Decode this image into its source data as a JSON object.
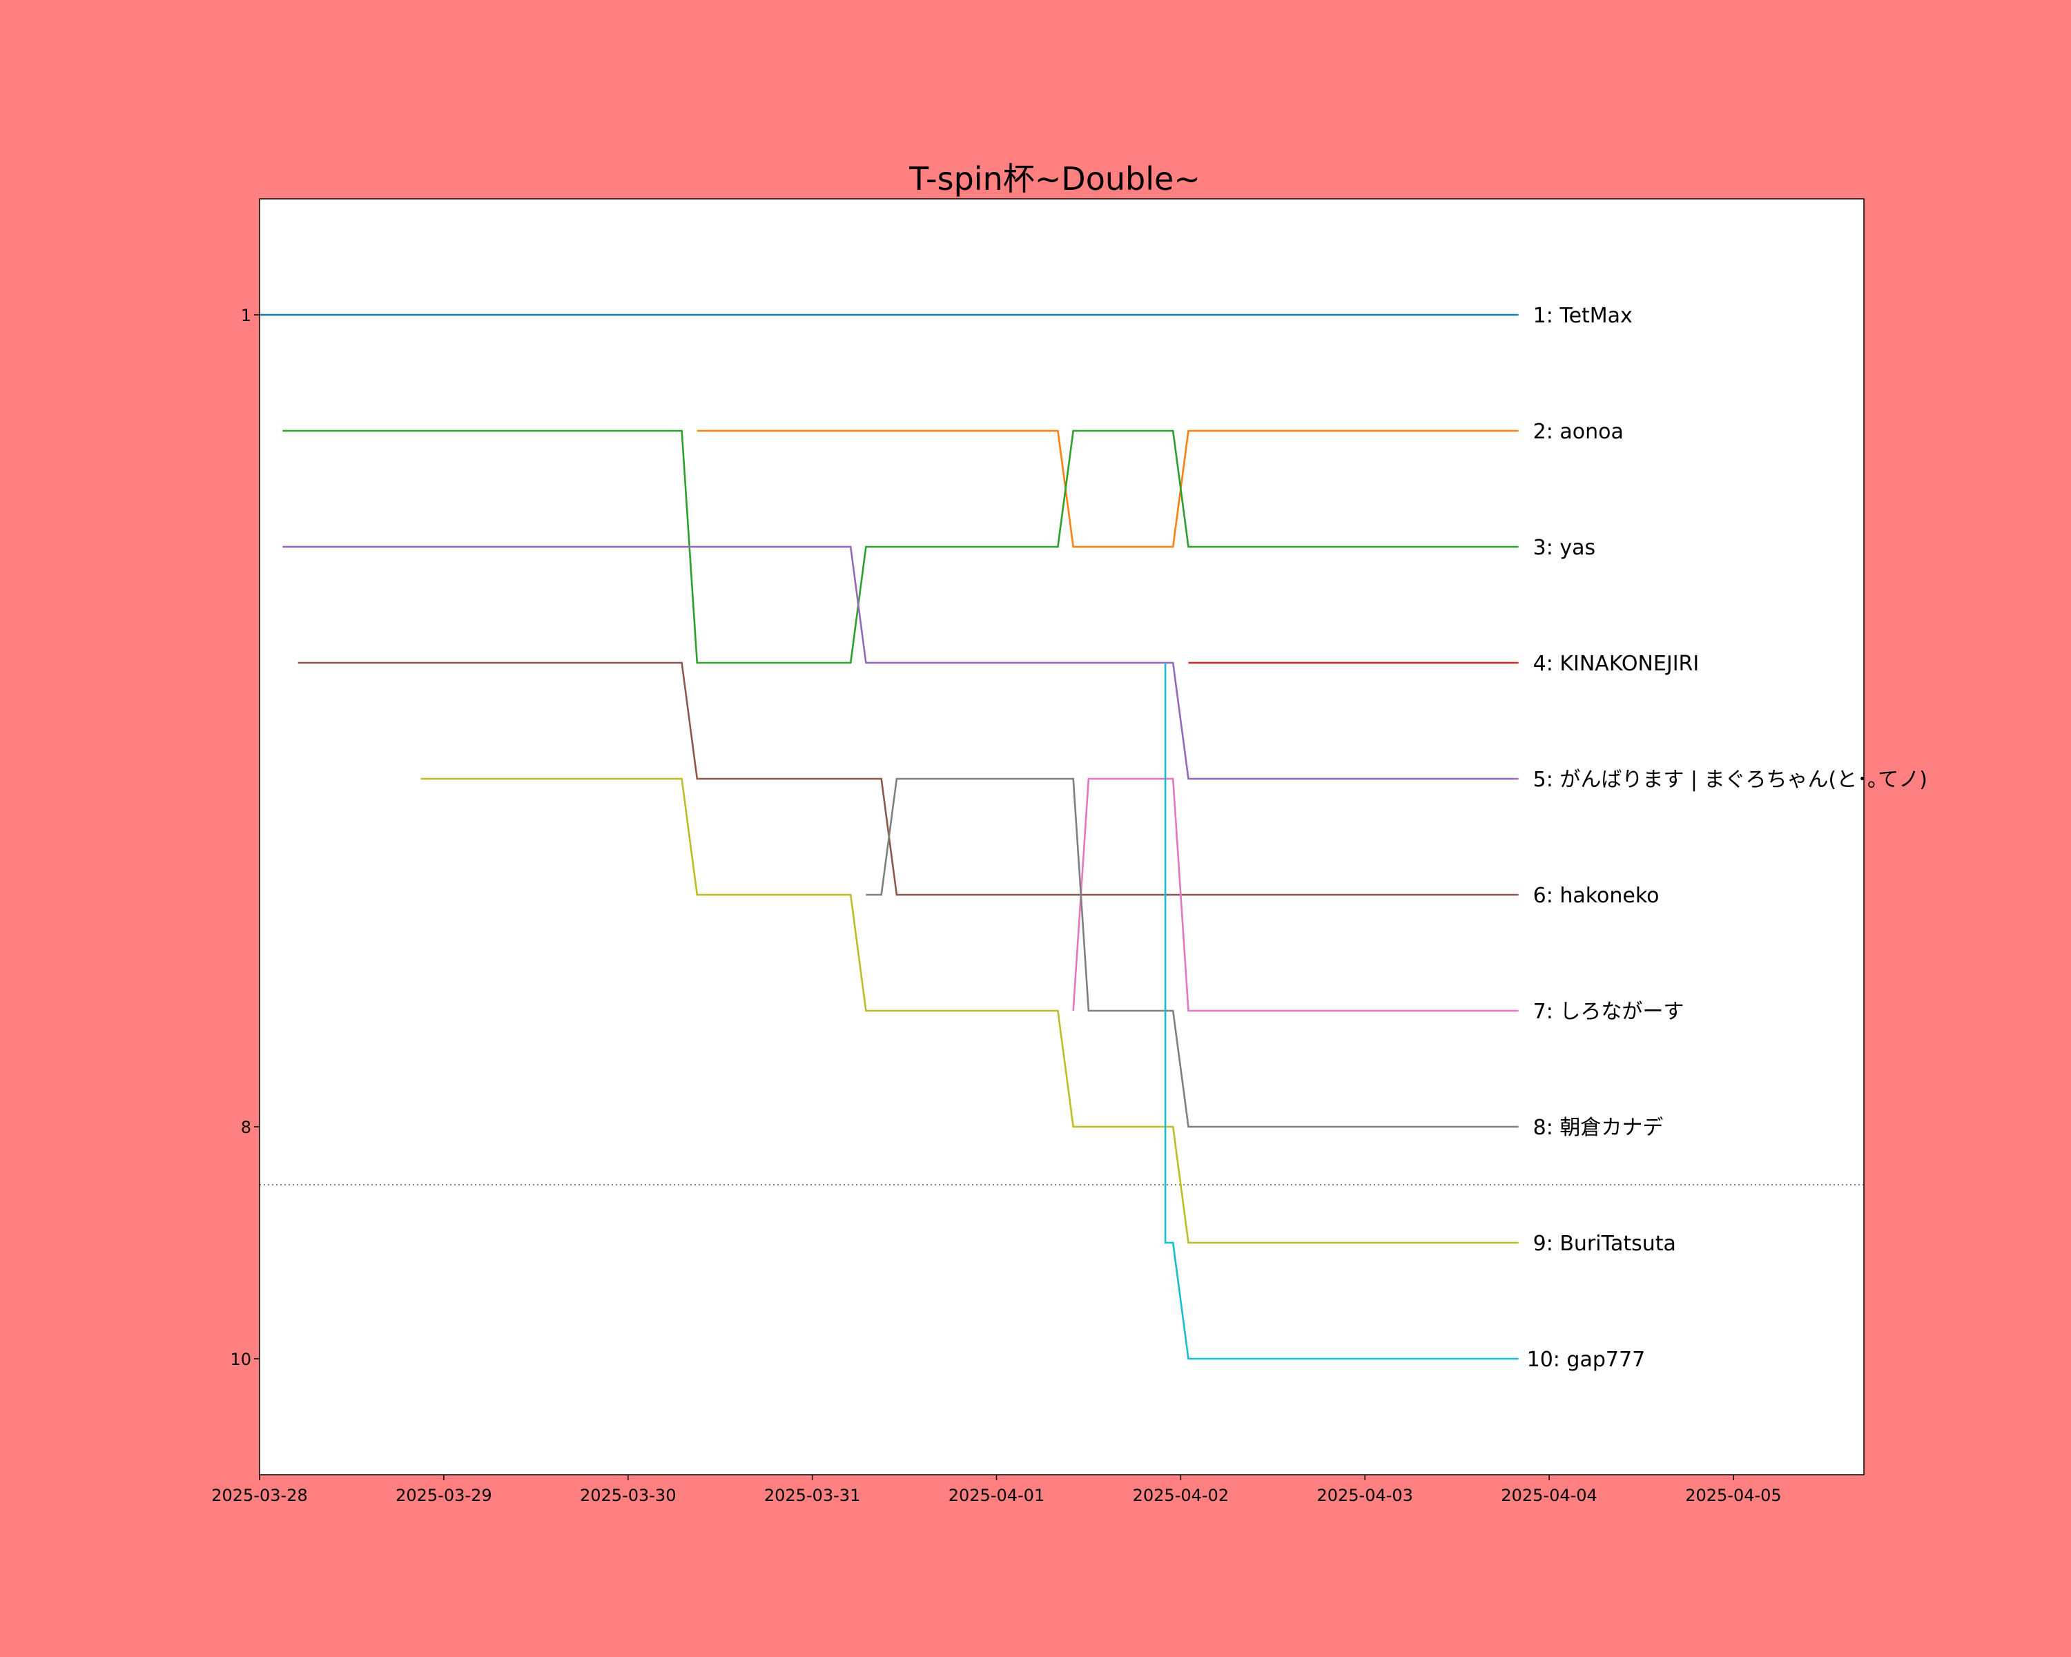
{
  "chart_data": {
    "type": "line",
    "title": "T-spin杯~Double~",
    "xlabel": "",
    "ylabel": "",
    "x_axis": {
      "type": "date",
      "ticks": [
        "2025-03-28",
        "2025-03-29",
        "2025-03-30",
        "2025-03-31",
        "2025-04-01",
        "2025-04-02",
        "2025-04-03",
        "2025-04-04",
        "2025-04-05"
      ],
      "range": [
        "2025-03-28",
        "2025-04-05 17:00"
      ]
    },
    "y_axis": {
      "inverted": true,
      "ticks": [
        "1",
        "8",
        "10"
      ],
      "range": [
        0,
        11
      ],
      "threshold_line": 8.5,
      "threshold_style": "dotted"
    },
    "grid": false,
    "legend": "none",
    "background": "#ff8080",
    "plot_background": "#ffffff",
    "series": [
      {
        "end_label": "1: TetMax",
        "color": "#1f77b4",
        "points": [
          [
            "2025-03-28 00:00",
            1
          ],
          [
            "2025-04-03 20:00",
            1
          ]
        ]
      },
      {
        "end_label": "2: aonoa",
        "color": "#ff7f0e",
        "points": [
          [
            "2025-03-30 09:00",
            2
          ],
          [
            "2025-04-01 08:00",
            2
          ],
          [
            "2025-04-01 10:00",
            3
          ],
          [
            "2025-04-01 23:00",
            3
          ],
          [
            "2025-04-02 01:00",
            2
          ],
          [
            "2025-04-03 20:00",
            2
          ]
        ]
      },
      {
        "end_label": "3: yas",
        "color": "#2ca02c",
        "points": [
          [
            "2025-03-28 03:00",
            2
          ],
          [
            "2025-03-30 07:00",
            2
          ],
          [
            "2025-03-30 09:00",
            4
          ],
          [
            "2025-03-31 05:00",
            4
          ],
          [
            "2025-03-31 07:00",
            3
          ],
          [
            "2025-04-01 08:00",
            3
          ],
          [
            "2025-04-01 10:00",
            2
          ],
          [
            "2025-04-01 23:00",
            2
          ],
          [
            "2025-04-02 01:00",
            3
          ],
          [
            "2025-04-03 20:00",
            3
          ]
        ]
      },
      {
        "end_label": "4: KINAKONEJIRI",
        "color": "#d62728",
        "points": [
          [
            "2025-04-02 01:00",
            4
          ],
          [
            "2025-04-03 20:00",
            4
          ]
        ]
      },
      {
        "end_label": "5: がんばります | まぐろちゃん(と･｡てノ)",
        "color": "#9467bd",
        "points": [
          [
            "2025-03-28 03:00",
            3
          ],
          [
            "2025-03-31 05:00",
            3
          ],
          [
            "2025-03-31 07:00",
            4
          ],
          [
            "2025-04-01 23:00",
            4
          ],
          [
            "2025-04-02 01:00",
            5
          ],
          [
            "2025-04-03 20:00",
            5
          ]
        ]
      },
      {
        "end_label": "6: hakoneko",
        "color": "#8c564b",
        "points": [
          [
            "2025-03-28 05:00",
            4
          ],
          [
            "2025-03-30 07:00",
            4
          ],
          [
            "2025-03-30 09:00",
            5
          ],
          [
            "2025-03-31 09:00",
            5
          ],
          [
            "2025-03-31 11:00",
            6
          ],
          [
            "2025-04-03 20:00",
            6
          ]
        ]
      },
      {
        "end_label": "7: しろながーす",
        "color": "#e377c2",
        "points": [
          [
            "2025-04-01 10:00",
            7
          ],
          [
            "2025-04-01 12:00",
            5
          ],
          [
            "2025-04-01 23:00",
            5
          ],
          [
            "2025-04-02 01:00",
            7
          ],
          [
            "2025-04-03 20:00",
            7
          ]
        ]
      },
      {
        "end_label": "8: 朝倉カナデ",
        "color": "#7f7f7f",
        "points": [
          [
            "2025-03-31 07:00",
            6
          ],
          [
            "2025-03-31 09:00",
            6
          ],
          [
            "2025-03-31 11:00",
            5
          ],
          [
            "2025-04-01 10:00",
            5
          ],
          [
            "2025-04-01 12:00",
            7
          ],
          [
            "2025-04-01 23:00",
            7
          ],
          [
            "2025-04-02 01:00",
            8
          ],
          [
            "2025-04-03 20:00",
            8
          ]
        ]
      },
      {
        "end_label": "9: BuriTatsuta",
        "color": "#bcbd22",
        "points": [
          [
            "2025-03-28 21:00",
            5
          ],
          [
            "2025-03-30 07:00",
            5
          ],
          [
            "2025-03-30 09:00",
            6
          ],
          [
            "2025-03-31 05:00",
            6
          ],
          [
            "2025-03-31 07:00",
            7
          ],
          [
            "2025-04-01 08:00",
            7
          ],
          [
            "2025-04-01 10:00",
            8
          ],
          [
            "2025-04-01 23:00",
            8
          ],
          [
            "2025-04-02 01:00",
            9
          ],
          [
            "2025-04-03 20:00",
            9
          ]
        ]
      },
      {
        "end_label": "10: gap777",
        "color": "#17becf",
        "points": [
          [
            "2025-04-01 22:00",
            4
          ],
          [
            "2025-04-01 22:00",
            9
          ],
          [
            "2025-04-01 23:00",
            9
          ],
          [
            "2025-04-02 01:00",
            10
          ],
          [
            "2025-04-03 20:00",
            10
          ]
        ]
      }
    ]
  }
}
